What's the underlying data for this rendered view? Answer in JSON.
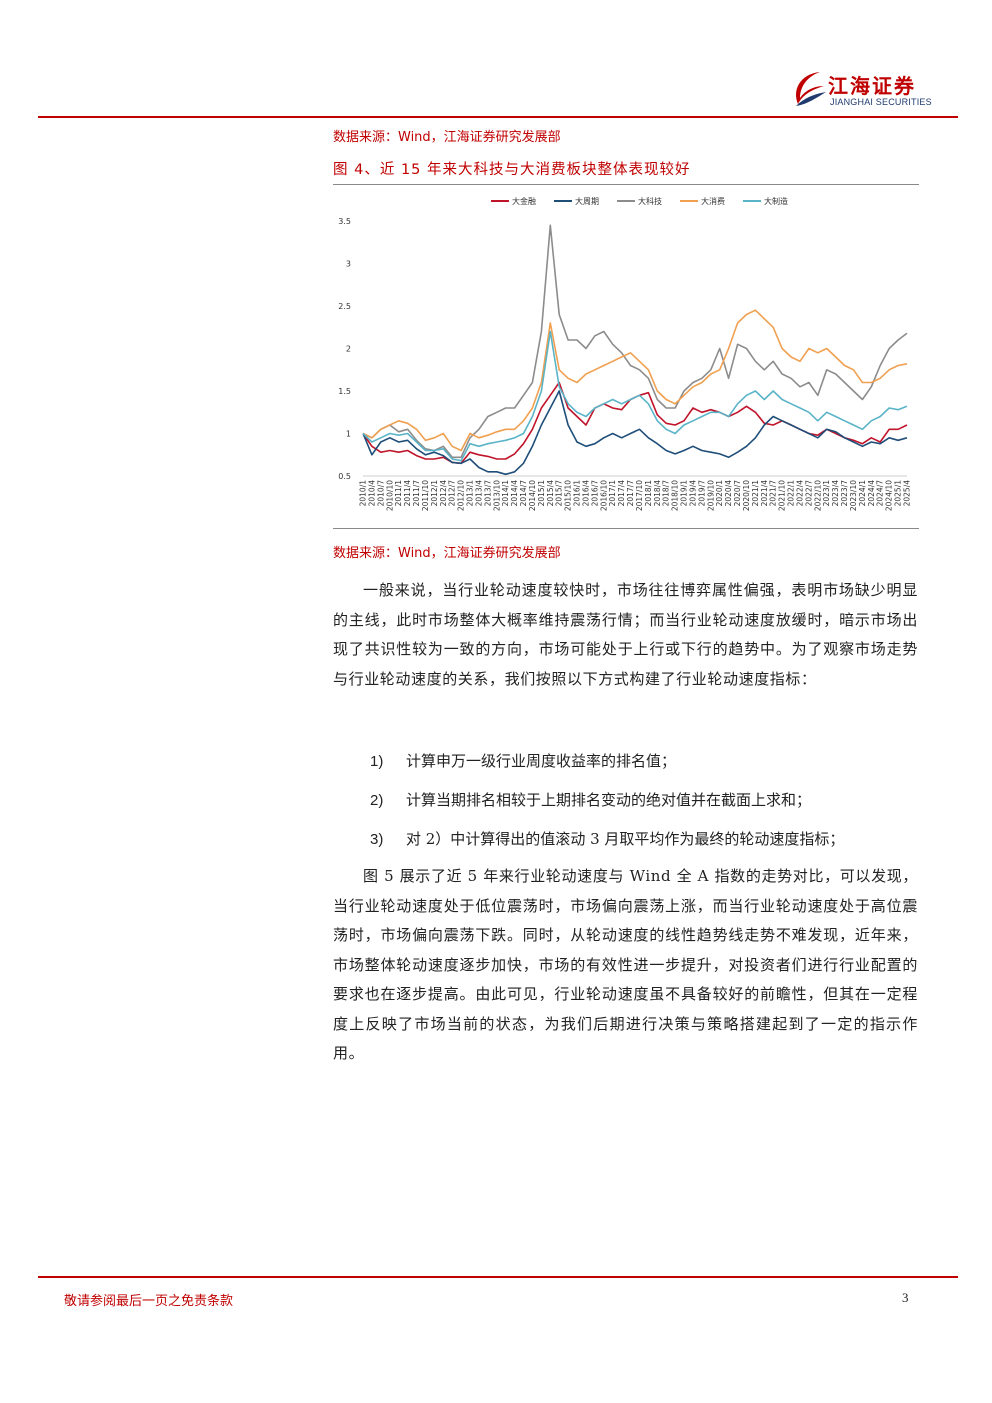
{
  "header": {
    "logo_cn": "江海证券",
    "logo_en": "JIANGHAI SECURITIES",
    "colors": {
      "accent": "#c00000",
      "navy": "#1f3a6e"
    }
  },
  "source_top": "数据来源：Wind，江海证券研究发展部",
  "figure": {
    "title": "图 4、近 15 年来大科技与大消费板块整体表现较好",
    "source": "数据来源：Wind，江海证券研究发展部"
  },
  "chart_data": {
    "type": "line",
    "legend_position": "top",
    "ylim": [
      0.5,
      3.5
    ],
    "yticks": [
      "0.5",
      "1",
      "1.5",
      "2",
      "2.5",
      "3",
      "3.5"
    ],
    "x_labels": [
      "2010/1",
      "2010/4",
      "2010/7",
      "2010/10",
      "2011/1",
      "2011/4",
      "2011/7",
      "2011/10",
      "2012/1",
      "2012/4",
      "2012/7",
      "2012/10",
      "2013/1",
      "2013/4",
      "2013/7",
      "2013/10",
      "2014/1",
      "2014/4",
      "2014/7",
      "2014/10",
      "2015/1",
      "2015/4",
      "2015/7",
      "2015/10",
      "2016/1",
      "2016/4",
      "2016/7",
      "2016/10",
      "2017/1",
      "2017/4",
      "2017/7",
      "2017/10",
      "2018/1",
      "2018/4",
      "2018/7",
      "2018/10",
      "2019/1",
      "2019/4",
      "2019/7",
      "2019/10",
      "2020/1",
      "2020/4",
      "2020/7",
      "2020/10",
      "2021/1",
      "2021/4",
      "2021/7",
      "2021/10",
      "2022/1",
      "2022/4",
      "2022/7",
      "2022/10",
      "2023/1",
      "2023/4",
      "2023/7",
      "2023/10",
      "2024/1",
      "2024/4",
      "2024/7",
      "2024/10",
      "2025/1",
      "2025/4"
    ],
    "series": [
      {
        "name": "大金融",
        "color": "#c0142a",
        "values": [
          1.0,
          0.85,
          0.78,
          0.8,
          0.78,
          0.8,
          0.74,
          0.7,
          0.7,
          0.72,
          0.66,
          0.65,
          0.78,
          0.75,
          0.73,
          0.7,
          0.7,
          0.76,
          0.88,
          1.05,
          1.3,
          1.45,
          1.6,
          1.3,
          1.2,
          1.1,
          1.3,
          1.35,
          1.3,
          1.28,
          1.4,
          1.45,
          1.48,
          1.22,
          1.12,
          1.1,
          1.15,
          1.3,
          1.25,
          1.28,
          1.25,
          1.2,
          1.25,
          1.32,
          1.25,
          1.12,
          1.1,
          1.15,
          1.1,
          1.05,
          1.0,
          0.98,
          1.05,
          1.0,
          0.95,
          0.92,
          0.88,
          0.95,
          0.9,
          1.05,
          1.05,
          1.1
        ]
      },
      {
        "name": "大周期",
        "color": "#1f4e79",
        "values": [
          1.0,
          0.75,
          0.9,
          0.95,
          0.9,
          0.92,
          0.82,
          0.75,
          0.78,
          0.74,
          0.66,
          0.65,
          0.7,
          0.6,
          0.55,
          0.55,
          0.52,
          0.55,
          0.65,
          0.85,
          1.1,
          1.3,
          1.5,
          1.1,
          0.9,
          0.85,
          0.88,
          0.95,
          1.0,
          0.95,
          1.0,
          1.05,
          0.95,
          0.88,
          0.8,
          0.76,
          0.8,
          0.85,
          0.8,
          0.78,
          0.76,
          0.72,
          0.78,
          0.85,
          0.95,
          1.1,
          1.2,
          1.15,
          1.1,
          1.05,
          1.0,
          0.95,
          1.05,
          1.02,
          0.95,
          0.9,
          0.85,
          0.9,
          0.88,
          0.95,
          0.92,
          0.95
        ]
      },
      {
        "name": "大科技",
        "color": "#8c8c8c",
        "values": [
          1.0,
          0.95,
          1.05,
          1.1,
          1.02,
          1.05,
          0.92,
          0.82,
          0.8,
          0.85,
          0.72,
          0.72,
          0.95,
          1.05,
          1.2,
          1.25,
          1.3,
          1.3,
          1.45,
          1.6,
          2.2,
          3.45,
          2.4,
          2.1,
          2.1,
          2.0,
          2.15,
          2.2,
          2.05,
          1.95,
          1.8,
          1.75,
          1.65,
          1.4,
          1.3,
          1.3,
          1.5,
          1.6,
          1.65,
          1.75,
          2.0,
          1.65,
          2.05,
          2.0,
          1.85,
          1.75,
          1.85,
          1.7,
          1.65,
          1.55,
          1.6,
          1.45,
          1.75,
          1.7,
          1.6,
          1.5,
          1.4,
          1.55,
          1.8,
          2.0,
          2.1,
          2.18
        ]
      },
      {
        "name": "大消费",
        "color": "#f0a050",
        "values": [
          1.0,
          0.95,
          1.05,
          1.1,
          1.15,
          1.12,
          1.05,
          0.92,
          0.95,
          1.0,
          0.85,
          0.8,
          1.0,
          0.95,
          0.98,
          1.02,
          1.05,
          1.05,
          1.15,
          1.3,
          1.6,
          2.3,
          1.75,
          1.65,
          1.6,
          1.7,
          1.75,
          1.8,
          1.85,
          1.9,
          1.95,
          1.85,
          1.75,
          1.5,
          1.4,
          1.35,
          1.45,
          1.55,
          1.6,
          1.7,
          1.75,
          2.0,
          2.3,
          2.4,
          2.45,
          2.35,
          2.25,
          2.0,
          1.9,
          1.85,
          2.0,
          1.95,
          2.0,
          1.9,
          1.8,
          1.75,
          1.6,
          1.6,
          1.65,
          1.75,
          1.8,
          1.82
        ]
      },
      {
        "name": "大制造",
        "color": "#5ab4c8",
        "values": [
          1.0,
          0.9,
          0.95,
          1.0,
          0.98,
          1.0,
          0.9,
          0.8,
          0.8,
          0.82,
          0.7,
          0.68,
          0.88,
          0.85,
          0.88,
          0.9,
          0.92,
          0.95,
          1.0,
          1.2,
          1.5,
          2.2,
          1.55,
          1.35,
          1.25,
          1.2,
          1.3,
          1.35,
          1.4,
          1.35,
          1.4,
          1.45,
          1.35,
          1.15,
          1.05,
          1.0,
          1.1,
          1.15,
          1.2,
          1.25,
          1.25,
          1.2,
          1.35,
          1.45,
          1.5,
          1.4,
          1.5,
          1.4,
          1.35,
          1.3,
          1.25,
          1.15,
          1.25,
          1.2,
          1.15,
          1.1,
          1.05,
          1.15,
          1.2,
          1.3,
          1.28,
          1.32
        ]
      }
    ]
  },
  "body": {
    "paragraph1": "一般来说，当行业轮动速度较快时，市场往往博弈属性偏强，表明市场缺少明显的主线，此时市场整体大概率维持震荡行情；而当行业轮动速度放缓时，暗示市场出现了共识性较为一致的方向，市场可能处于上行或下行的趋势中。为了观察市场走势与行业轮动速度的关系，我们按照以下方式构建了行业轮动速度指标：",
    "list": [
      {
        "num": "1)",
        "text": "计算申万一级行业周度收益率的排名值；"
      },
      {
        "num": "2)",
        "text": "计算当期排名相较于上期排名变动的绝对值并在截面上求和；"
      },
      {
        "num": "3)",
        "text": "对 2）中计算得出的值滚动 3 月取平均作为最终的轮动速度指标；"
      }
    ],
    "paragraph2": "图 5 展示了近 5 年来行业轮动速度与 Wind 全 A 指数的走势对比，可以发现，当行业轮动速度处于低位震荡时，市场偏向震荡上涨，而当行业轮动速度处于高位震荡时，市场偏向震荡下跌。同时，从轮动速度的线性趋势线走势不难发现，近年来，市场整体轮动速度逐步加快，市场的有效性进一步提升，对投资者们进行行业配置的要求也在逐步提高。由此可见，行业轮动速度虽不具备较好的前瞻性，但其在一定程度上反映了市场当前的状态，为我们后期进行决策与策略搭建起到了一定的指示作用。"
  },
  "footer": {
    "disclaimer": "敬请参阅最后一页之免责条款",
    "page": "3"
  }
}
